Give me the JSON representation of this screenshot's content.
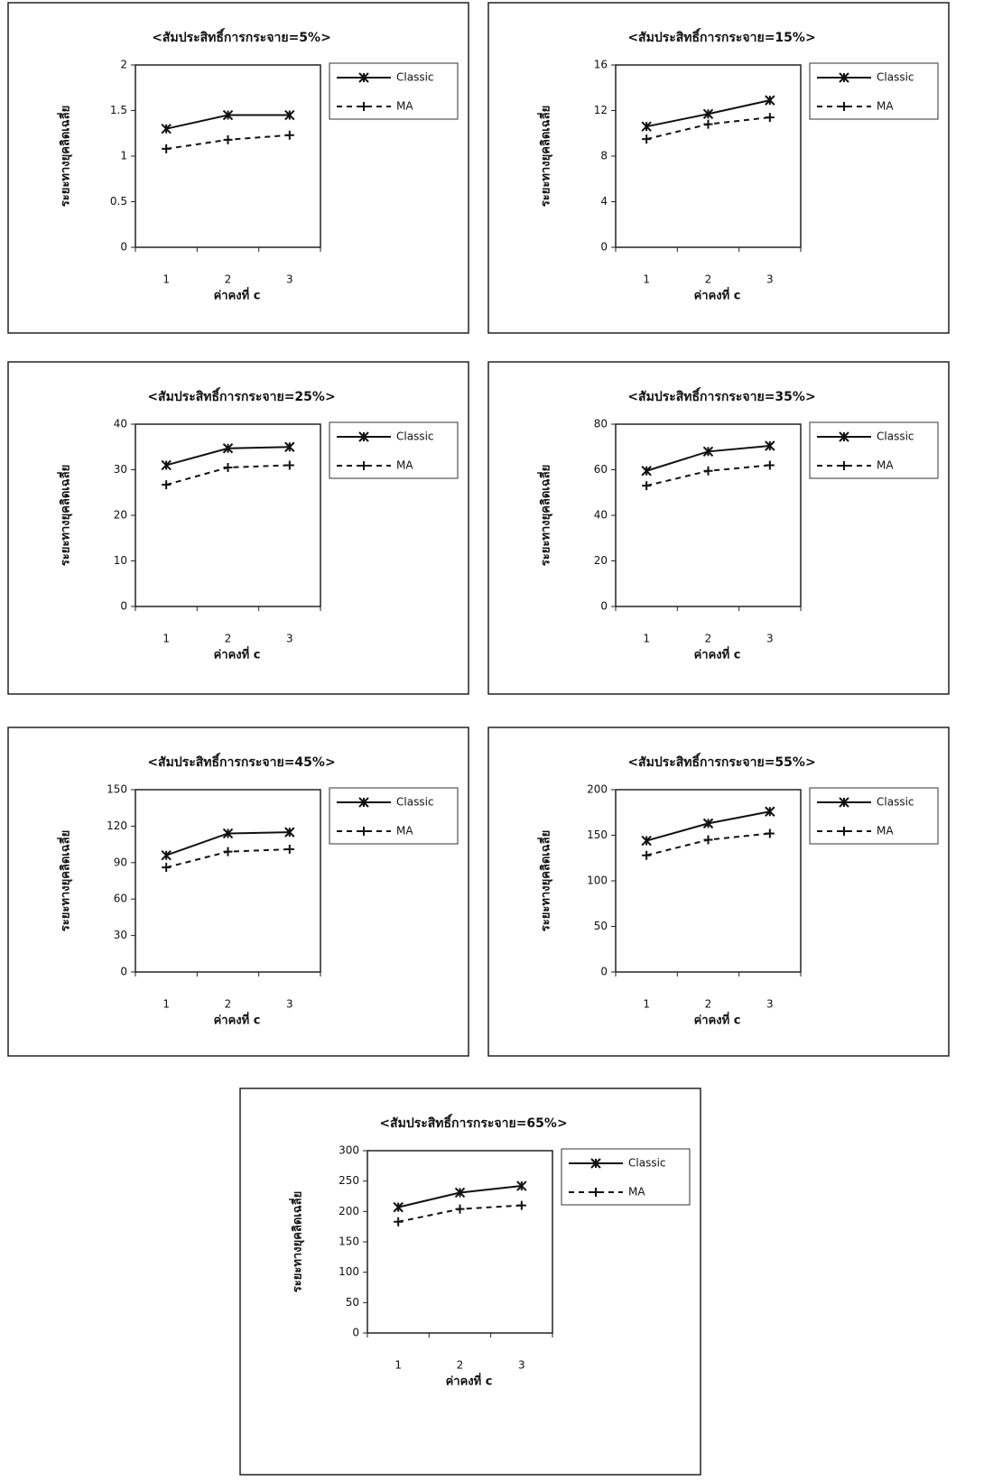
{
  "chart_data": [
    {
      "type": "line",
      "title": "<สัมประสิทธิ์การกระจาย=5%>",
      "x_label": "ค่าคงที่ c",
      "y_label": "ระยะทางยุคลิดเฉลี่ย",
      "categories": [
        "1",
        "2",
        "3"
      ],
      "ylim": [
        0,
        2
      ],
      "yticks": [
        0,
        0.5,
        1,
        1.5,
        2
      ],
      "grid": false,
      "series": [
        {
          "name": "Classic",
          "color": "#111111",
          "line_style": "solid",
          "marker": "x",
          "values": [
            1.3,
            1.45,
            1.45
          ]
        },
        {
          "name": "MA",
          "color": "#111111",
          "line_style": "dashed",
          "marker": "+",
          "values": [
            1.08,
            1.18,
            1.23
          ]
        }
      ]
    },
    {
      "type": "line",
      "title": "<สัมประสิทธิ์การกระจาย=15%>",
      "x_label": "ค่าคงที่ c",
      "y_label": "ระยะทางยุคลิดเฉลี่ย",
      "categories": [
        "1",
        "2",
        "3"
      ],
      "ylim": [
        0,
        16
      ],
      "yticks": [
        0,
        4,
        8,
        12,
        16
      ],
      "grid": false,
      "series": [
        {
          "name": "Classic",
          "color": "#111111",
          "line_style": "solid",
          "marker": "x",
          "values": [
            10.6,
            11.7,
            12.9
          ]
        },
        {
          "name": "MA",
          "color": "#111111",
          "line_style": "dashed",
          "marker": "+",
          "values": [
            9.5,
            10.8,
            11.4
          ]
        }
      ]
    },
    {
      "type": "line",
      "title": "<สัมประสิทธิ์การกระจาย=25%>",
      "x_label": "ค่าคงที่ c",
      "y_label": "ระยะทางยุคลิดเฉลี่ย",
      "categories": [
        "1",
        "2",
        "3"
      ],
      "ylim": [
        0,
        40
      ],
      "yticks": [
        0,
        10,
        20,
        30,
        40
      ],
      "grid": false,
      "series": [
        {
          "name": "Classic",
          "color": "#111111",
          "line_style": "solid",
          "marker": "x",
          "values": [
            31,
            34.7,
            35
          ]
        },
        {
          "name": "MA",
          "color": "#111111",
          "line_style": "dashed",
          "marker": "+",
          "values": [
            26.7,
            30.5,
            31
          ]
        }
      ]
    },
    {
      "type": "line",
      "title": "<สัมประสิทธิ์การกระจาย=35%>",
      "x_label": "ค่าคงที่ c",
      "y_label": "ระยะทางยุคลิดเฉลี่ย",
      "categories": [
        "1",
        "2",
        "3"
      ],
      "ylim": [
        0,
        80
      ],
      "yticks": [
        0,
        20,
        40,
        60,
        80
      ],
      "grid": false,
      "series": [
        {
          "name": "Classic",
          "color": "#111111",
          "line_style": "solid",
          "marker": "x",
          "values": [
            59.5,
            68,
            70.5
          ]
        },
        {
          "name": "MA",
          "color": "#111111",
          "line_style": "dashed",
          "marker": "+",
          "values": [
            53,
            59.5,
            62
          ]
        }
      ]
    },
    {
      "type": "line",
      "title": "<สัมประสิทธิ์การกระจาย=45%>",
      "x_label": "ค่าคงที่ c",
      "y_label": "ระยะทางยุคลิดเฉลี่ย",
      "categories": [
        "1",
        "2",
        "3"
      ],
      "ylim": [
        0,
        150
      ],
      "yticks": [
        0,
        30,
        60,
        90,
        120,
        150
      ],
      "grid": false,
      "series": [
        {
          "name": "Classic",
          "color": "#111111",
          "line_style": "solid",
          "marker": "x",
          "values": [
            96,
            114,
            115
          ]
        },
        {
          "name": "MA",
          "color": "#111111",
          "line_style": "dashed",
          "marker": "+",
          "values": [
            86,
            99,
            101
          ]
        }
      ]
    },
    {
      "type": "line",
      "title": "<สัมประสิทธิ์การกระจาย=55%>",
      "x_label": "ค่าคงที่ c",
      "y_label": "ระยะทางยุคลิดเฉลี่ย",
      "categories": [
        "1",
        "2",
        "3"
      ],
      "ylim": [
        0,
        200
      ],
      "yticks": [
        0,
        50,
        100,
        150,
        200
      ],
      "grid": false,
      "series": [
        {
          "name": "Classic",
          "color": "#111111",
          "line_style": "solid",
          "marker": "x",
          "values": [
            144,
            163,
            176
          ]
        },
        {
          "name": "MA",
          "color": "#111111",
          "line_style": "dashed",
          "marker": "+",
          "values": [
            128,
            145,
            152
          ]
        }
      ]
    },
    {
      "type": "line",
      "title": "<สัมประสิทธิ์การกระจาย=65%>",
      "x_label": "ค่าคงที่ c",
      "y_label": "ระยะทางยุคลิดเฉลี่ย",
      "categories": [
        "1",
        "2",
        "3"
      ],
      "ylim": [
        0,
        300
      ],
      "yticks": [
        0,
        50,
        100,
        150,
        200,
        250,
        300
      ],
      "grid": false,
      "series": [
        {
          "name": "Classic",
          "color": "#111111",
          "line_style": "solid",
          "marker": "x",
          "values": [
            207,
            231,
            242
          ]
        },
        {
          "name": "MA",
          "color": "#111111",
          "line_style": "dashed",
          "marker": "+",
          "values": [
            183,
            204,
            210
          ]
        }
      ]
    }
  ]
}
